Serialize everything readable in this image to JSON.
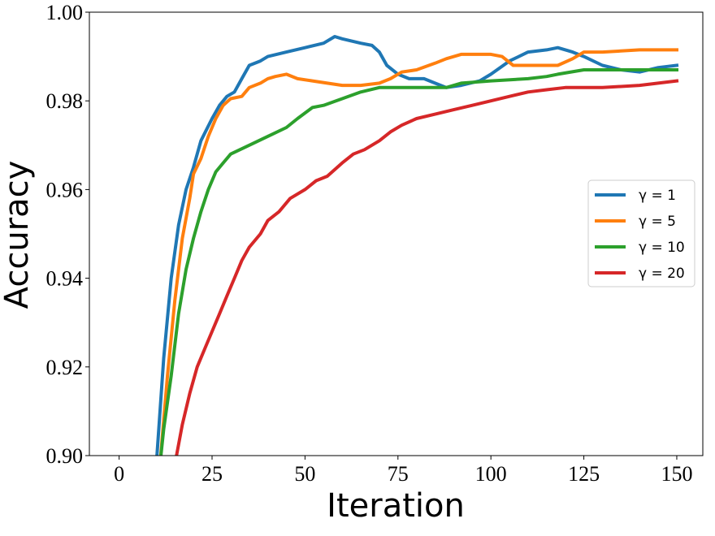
{
  "chart_data": {
    "type": "line",
    "title": "",
    "xlabel": "Iteration",
    "ylabel": "Accuracy",
    "xlim": [
      -8,
      157
    ],
    "ylim": [
      0.9,
      1.0
    ],
    "x_ticks": [
      0,
      25,
      50,
      75,
      100,
      125,
      150
    ],
    "y_ticks": [
      0.9,
      0.92,
      0.94,
      0.96,
      0.98,
      1.0
    ],
    "y_tick_labels": [
      "0.90",
      "0.92",
      "0.94",
      "0.96",
      "0.98",
      "1.00"
    ],
    "grid": false,
    "legend_position": "center-right",
    "series": [
      {
        "name": "γ = 1",
        "color": "#1f77b4",
        "points": [
          [
            10,
            0.898
          ],
          [
            12,
            0.922
          ],
          [
            14,
            0.94
          ],
          [
            16,
            0.952
          ],
          [
            18,
            0.96
          ],
          [
            20,
            0.965
          ],
          [
            22,
            0.971
          ],
          [
            25,
            0.976
          ],
          [
            27,
            0.979
          ],
          [
            29,
            0.981
          ],
          [
            31,
            0.982
          ],
          [
            33,
            0.985
          ],
          [
            35,
            0.988
          ],
          [
            38,
            0.989
          ],
          [
            40,
            0.99
          ],
          [
            45,
            0.991
          ],
          [
            50,
            0.992
          ],
          [
            55,
            0.993
          ],
          [
            58,
            0.9945
          ],
          [
            60,
            0.994
          ],
          [
            65,
            0.993
          ],
          [
            68,
            0.9925
          ],
          [
            70,
            0.991
          ],
          [
            72,
            0.988
          ],
          [
            75,
            0.986
          ],
          [
            78,
            0.985
          ],
          [
            82,
            0.985
          ],
          [
            85,
            0.984
          ],
          [
            88,
            0.983
          ],
          [
            92,
            0.9835
          ],
          [
            97,
            0.9845
          ],
          [
            100,
            0.986
          ],
          [
            105,
            0.989
          ],
          [
            110,
            0.991
          ],
          [
            115,
            0.9915
          ],
          [
            118,
            0.992
          ],
          [
            122,
            0.991
          ],
          [
            125,
            0.99
          ],
          [
            130,
            0.988
          ],
          [
            135,
            0.987
          ],
          [
            140,
            0.9865
          ],
          [
            145,
            0.9875
          ],
          [
            150,
            0.988
          ]
        ]
      },
      {
        "name": "γ = 5",
        "color": "#ff7f0e",
        "points": [
          [
            11,
            0.898
          ],
          [
            13,
            0.918
          ],
          [
            15,
            0.935
          ],
          [
            17,
            0.949
          ],
          [
            19,
            0.958
          ],
          [
            20,
            0.9635
          ],
          [
            22,
            0.967
          ],
          [
            24,
            0.972
          ],
          [
            26,
            0.976
          ],
          [
            28,
            0.979
          ],
          [
            30,
            0.9805
          ],
          [
            33,
            0.981
          ],
          [
            35,
            0.983
          ],
          [
            38,
            0.984
          ],
          [
            40,
            0.985
          ],
          [
            42,
            0.9855
          ],
          [
            45,
            0.986
          ],
          [
            48,
            0.985
          ],
          [
            52,
            0.9845
          ],
          [
            56,
            0.984
          ],
          [
            60,
            0.9835
          ],
          [
            65,
            0.9835
          ],
          [
            70,
            0.984
          ],
          [
            73,
            0.985
          ],
          [
            76,
            0.9865
          ],
          [
            80,
            0.987
          ],
          [
            85,
            0.9885
          ],
          [
            88,
            0.9895
          ],
          [
            92,
            0.9905
          ],
          [
            100,
            0.9905
          ],
          [
            103,
            0.99
          ],
          [
            106,
            0.988
          ],
          [
            110,
            0.988
          ],
          [
            118,
            0.988
          ],
          [
            122,
            0.9895
          ],
          [
            125,
            0.991
          ],
          [
            130,
            0.991
          ],
          [
            140,
            0.9915
          ],
          [
            150,
            0.9915
          ]
        ]
      },
      {
        "name": "γ = 10",
        "color": "#2ca02c",
        "points": [
          [
            11,
            0.898
          ],
          [
            12,
            0.906
          ],
          [
            14,
            0.918
          ],
          [
            16,
            0.932
          ],
          [
            18,
            0.942
          ],
          [
            20,
            0.949
          ],
          [
            22,
            0.955
          ],
          [
            24,
            0.96
          ],
          [
            26,
            0.964
          ],
          [
            28,
            0.966
          ],
          [
            30,
            0.968
          ],
          [
            35,
            0.97
          ],
          [
            40,
            0.972
          ],
          [
            45,
            0.974
          ],
          [
            48,
            0.976
          ],
          [
            52,
            0.9785
          ],
          [
            55,
            0.979
          ],
          [
            60,
            0.9805
          ],
          [
            65,
            0.982
          ],
          [
            70,
            0.983
          ],
          [
            80,
            0.983
          ],
          [
            88,
            0.983
          ],
          [
            92,
            0.984
          ],
          [
            100,
            0.9845
          ],
          [
            110,
            0.985
          ],
          [
            115,
            0.9855
          ],
          [
            118,
            0.986
          ],
          [
            125,
            0.987
          ],
          [
            135,
            0.987
          ],
          [
            145,
            0.987
          ],
          [
            150,
            0.987
          ]
        ]
      },
      {
        "name": "γ = 20",
        "color": "#d62728",
        "points": [
          [
            15,
            0.898
          ],
          [
            17,
            0.907
          ],
          [
            19,
            0.914
          ],
          [
            21,
            0.92
          ],
          [
            23,
            0.924
          ],
          [
            25,
            0.928
          ],
          [
            27,
            0.932
          ],
          [
            29,
            0.936
          ],
          [
            31,
            0.94
          ],
          [
            33,
            0.944
          ],
          [
            35,
            0.947
          ],
          [
            38,
            0.95
          ],
          [
            40,
            0.953
          ],
          [
            43,
            0.955
          ],
          [
            46,
            0.958
          ],
          [
            50,
            0.96
          ],
          [
            53,
            0.962
          ],
          [
            56,
            0.963
          ],
          [
            60,
            0.966
          ],
          [
            63,
            0.968
          ],
          [
            66,
            0.969
          ],
          [
            70,
            0.971
          ],
          [
            73,
            0.973
          ],
          [
            76,
            0.9745
          ],
          [
            80,
            0.976
          ],
          [
            85,
            0.977
          ],
          [
            90,
            0.978
          ],
          [
            95,
            0.979
          ],
          [
            100,
            0.98
          ],
          [
            105,
            0.981
          ],
          [
            110,
            0.982
          ],
          [
            115,
            0.9825
          ],
          [
            120,
            0.983
          ],
          [
            130,
            0.983
          ],
          [
            140,
            0.9835
          ],
          [
            150,
            0.9845
          ]
        ]
      }
    ]
  }
}
